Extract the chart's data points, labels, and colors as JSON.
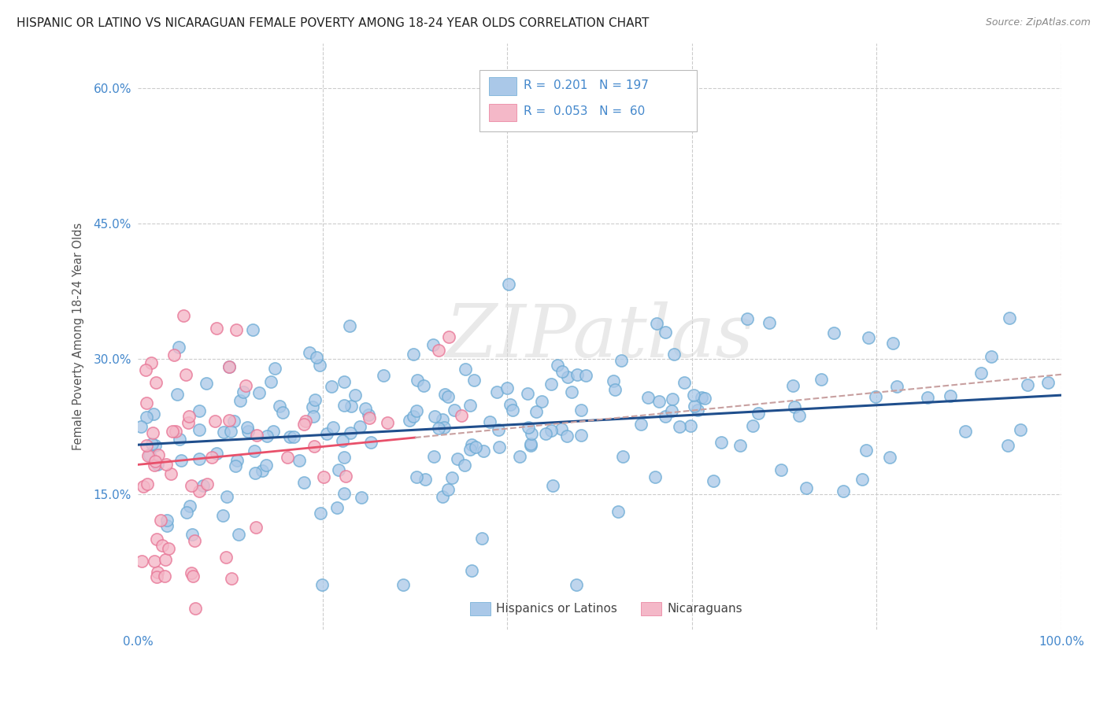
{
  "title": "HISPANIC OR LATINO VS NICARAGUAN FEMALE POVERTY AMONG 18-24 YEAR OLDS CORRELATION CHART",
  "source": "Source: ZipAtlas.com",
  "ylabel": "Female Poverty Among 18-24 Year Olds",
  "xlim": [
    0,
    1.0
  ],
  "ylim": [
    0,
    0.65
  ],
  "xticks": [
    0.0,
    0.2,
    0.4,
    0.6,
    0.8,
    1.0
  ],
  "xticklabels": [
    "0.0%",
    "",
    "",
    "",
    "",
    "100.0%"
  ],
  "yticks": [
    0.15,
    0.3,
    0.45,
    0.6
  ],
  "yticklabels": [
    "15.0%",
    "30.0%",
    "45.0%",
    "60.0%"
  ],
  "blue_fill": "#aac8e8",
  "blue_edge": "#6aaad4",
  "pink_fill": "#f4b8c8",
  "pink_edge": "#e87898",
  "blue_line_color": "#1f4e8c",
  "pink_line_color": "#e8506a",
  "dashed_line_color": "#c8a0a0",
  "legend_label_blue": "Hispanics or Latinos",
  "legend_label_pink": "Nicaraguans",
  "R_blue": 0.201,
  "N_blue": 197,
  "R_pink": 0.053,
  "N_pink": 60,
  "watermark": "ZIPatlas",
  "background_color": "#ffffff",
  "grid_color": "#cccccc",
  "tick_color": "#4488cc",
  "title_color": "#222222",
  "source_color": "#888888",
  "ylabel_color": "#555555"
}
